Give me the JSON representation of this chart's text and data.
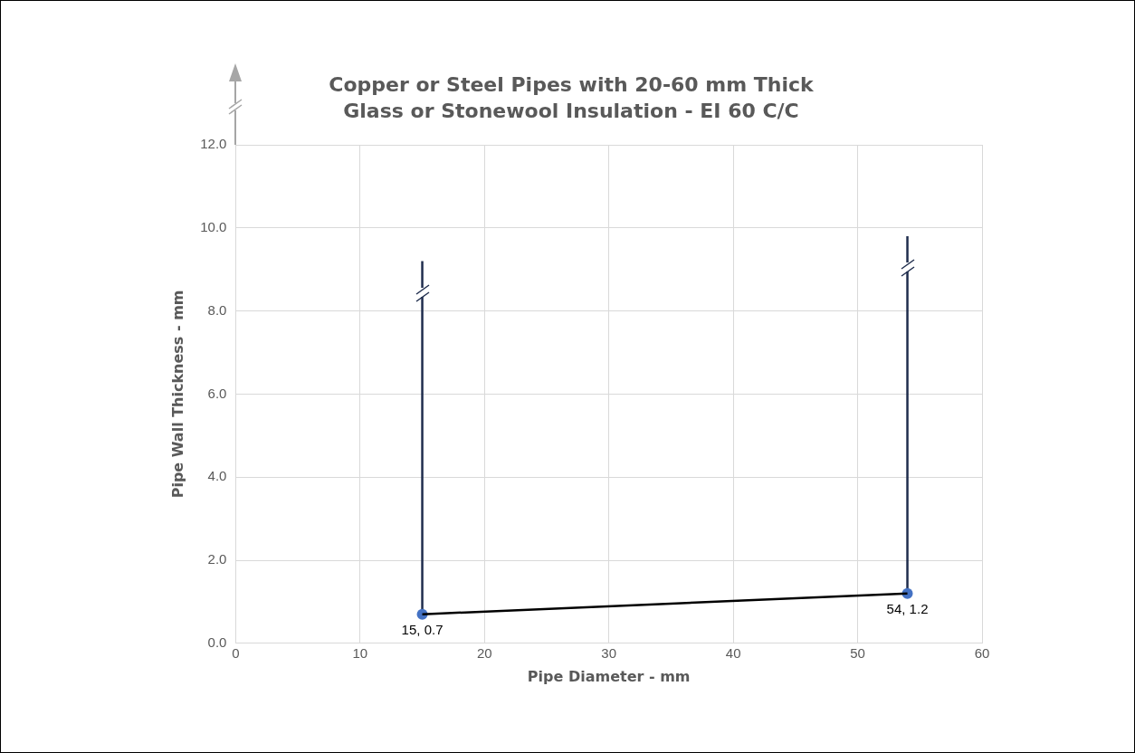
{
  "chart_data": {
    "type": "scatter",
    "title": "Copper or Steel Pipes with 20-60 mm Thick\nGlass or Stonewool Insulation - EI 60 C/C",
    "xlabel": "Pipe Diameter - mm",
    "ylabel": "Pipe Wall Thickness - mm",
    "x": [
      15,
      54
    ],
    "series": [
      {
        "type": "line",
        "values": [
          0.7,
          1.2
        ],
        "color": "#000000",
        "marker": "none"
      },
      {
        "values": [
          0.7,
          1.2
        ],
        "errors": [
          [
            0.7,
            9.2
          ],
          [
            1.2,
            9.8
          ]
        ],
        "color": "#4472c4",
        "marker": "circle",
        "value_labels": [
          "15, 0.7",
          "54, 1.2"
        ]
      }
    ],
    "xlim": [
      0,
      60
    ],
    "xticks": [
      0,
      10,
      20,
      30,
      40,
      50,
      60
    ],
    "ylim": [
      0,
      12
    ],
    "yticks": [
      {
        "value": 0,
        "label": "0.0"
      },
      {
        "value": 2,
        "label": "2.0"
      },
      {
        "value": 4,
        "label": "4.0"
      },
      {
        "value": 6,
        "label": "6.0"
      },
      {
        "value": 8,
        "label": "8.0"
      },
      {
        "value": 10,
        "label": "10.0"
      },
      {
        "value": 12,
        "label": "12.0"
      }
    ],
    "grid": true,
    "legend": false
  }
}
